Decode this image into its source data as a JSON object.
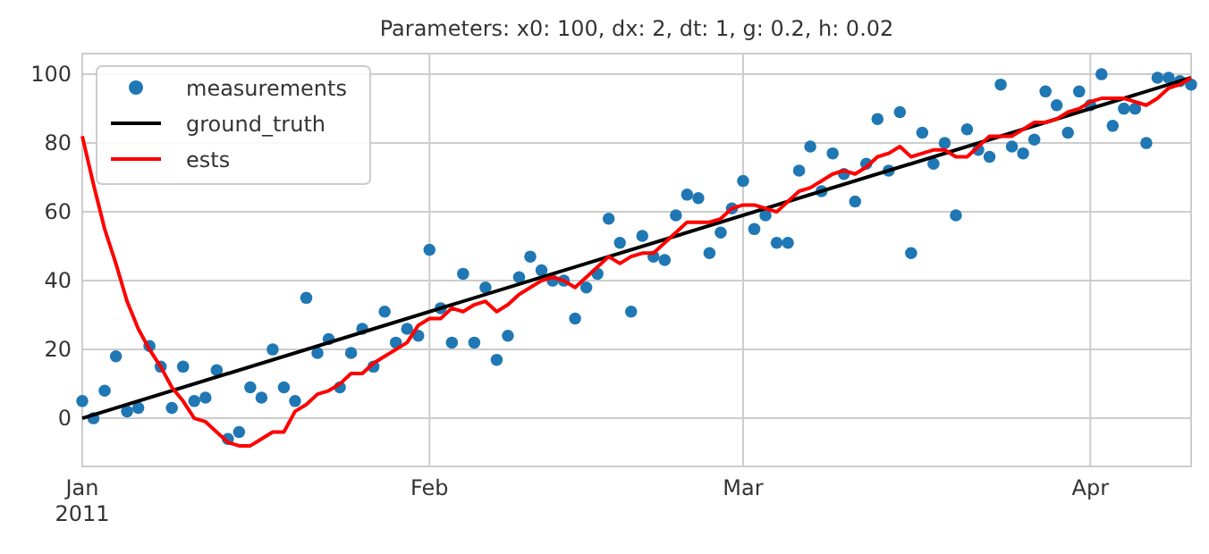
{
  "chart_data": {
    "type": "line",
    "title": "Parameters: x0: 100, dx: 2, dt: 1, g: 0.2, h: 0.02",
    "x": [
      "2011-01-01",
      "2011-01-02",
      "2011-01-03",
      "2011-01-04",
      "2011-01-05",
      "2011-01-06",
      "2011-01-07",
      "2011-01-08",
      "2011-01-09",
      "2011-01-10",
      "2011-01-11",
      "2011-01-12",
      "2011-01-13",
      "2011-01-14",
      "2011-01-15",
      "2011-01-16",
      "2011-01-17",
      "2011-01-18",
      "2011-01-19",
      "2011-01-20",
      "2011-01-21",
      "2011-01-22",
      "2011-01-23",
      "2011-01-24",
      "2011-01-25",
      "2011-01-26",
      "2011-01-27",
      "2011-01-28",
      "2011-01-29",
      "2011-01-30",
      "2011-01-31",
      "2011-02-01",
      "2011-02-02",
      "2011-02-03",
      "2011-02-04",
      "2011-02-05",
      "2011-02-06",
      "2011-02-07",
      "2011-02-08",
      "2011-02-09",
      "2011-02-10",
      "2011-02-11",
      "2011-02-12",
      "2011-02-13",
      "2011-02-14",
      "2011-02-15",
      "2011-02-16",
      "2011-02-17",
      "2011-02-18",
      "2011-02-19",
      "2011-02-20",
      "2011-02-21",
      "2011-02-22",
      "2011-02-23",
      "2011-02-24",
      "2011-02-25",
      "2011-02-26",
      "2011-02-27",
      "2011-02-28",
      "2011-03-01",
      "2011-03-02",
      "2011-03-03",
      "2011-03-04",
      "2011-03-05",
      "2011-03-06",
      "2011-03-07",
      "2011-03-08",
      "2011-03-09",
      "2011-03-10",
      "2011-03-11",
      "2011-03-12",
      "2011-03-13",
      "2011-03-14",
      "2011-03-15",
      "2011-03-16",
      "2011-03-17",
      "2011-03-18",
      "2011-03-19",
      "2011-03-20",
      "2011-03-21",
      "2011-03-22",
      "2011-03-23",
      "2011-03-24",
      "2011-03-25",
      "2011-03-26",
      "2011-03-27",
      "2011-03-28",
      "2011-03-29",
      "2011-03-30",
      "2011-03-31",
      "2011-04-01",
      "2011-04-02",
      "2011-04-03",
      "2011-04-04",
      "2011-04-05",
      "2011-04-06",
      "2011-04-07",
      "2011-04-08",
      "2011-04-09",
      "2011-04-10"
    ],
    "series": [
      {
        "name": "measurements",
        "type": "scatter",
        "marker": "circle",
        "color": "#1f77b4",
        "values": [
          5,
          0,
          8,
          18,
          2,
          3,
          21,
          15,
          3,
          15,
          5,
          6,
          14,
          -6,
          -4,
          9,
          6,
          20,
          9,
          5,
          35,
          19,
          23,
          9,
          19,
          26,
          15,
          31,
          22,
          26,
          24,
          49,
          32,
          22,
          42,
          22,
          38,
          17,
          24,
          41,
          47,
          43,
          40,
          40,
          29,
          38,
          42,
          58,
          51,
          31,
          53,
          47,
          46,
          59,
          65,
          64,
          48,
          54,
          61,
          69,
          55,
          59,
          51,
          51,
          72,
          79,
          66,
          77,
          71,
          63,
          74,
          87,
          72,
          89,
          48,
          83,
          74,
          80,
          59,
          84,
          78,
          76,
          97,
          79,
          77,
          81,
          95,
          91,
          83,
          95,
          91,
          100,
          85,
          90,
          90,
          80,
          99,
          99,
          98,
          97
        ]
      },
      {
        "name": "ground_truth",
        "color": "#000000",
        "x": [
          "2011-01-01",
          "2011-04-10"
        ],
        "values": [
          0,
          99
        ]
      },
      {
        "name": "ests",
        "color": "#ff0000",
        "values": [
          82,
          68,
          55,
          45,
          34,
          26,
          20,
          15,
          9,
          5,
          0,
          -1,
          -4,
          -7,
          -8,
          -8,
          -6,
          -4,
          -4,
          2,
          4,
          7,
          8,
          10,
          13,
          13,
          16,
          18,
          20,
          22,
          27,
          29,
          29,
          32,
          31,
          33,
          34,
          31,
          33,
          36,
          38,
          40,
          41,
          40,
          38,
          41,
          44,
          47,
          45,
          47,
          48,
          48,
          51,
          54,
          57,
          57,
          57,
          58,
          61,
          62,
          62,
          61,
          60,
          63,
          66,
          67,
          69,
          71,
          72,
          71,
          73,
          76,
          77,
          79,
          76,
          77,
          78,
          78,
          76,
          76,
          79,
          82,
          82,
          82,
          84,
          86,
          86,
          87,
          89,
          90,
          92,
          93,
          93,
          93,
          92,
          91,
          93,
          96,
          97,
          99
        ]
      }
    ],
    "xlim": [
      "2011-01-01",
      "2011-04-10"
    ],
    "xticks": [
      {
        "value": "2011-01-01",
        "label": "Jan\n2011"
      },
      {
        "value": "2011-02-01",
        "label": "Feb"
      },
      {
        "value": "2011-03-01",
        "label": "Mar"
      },
      {
        "value": "2011-04-01",
        "label": "Apr"
      }
    ],
    "ylim": [
      -14,
      106
    ],
    "yticks": [
      0,
      20,
      40,
      60,
      80,
      100
    ],
    "grid": true,
    "legend": "top left"
  }
}
